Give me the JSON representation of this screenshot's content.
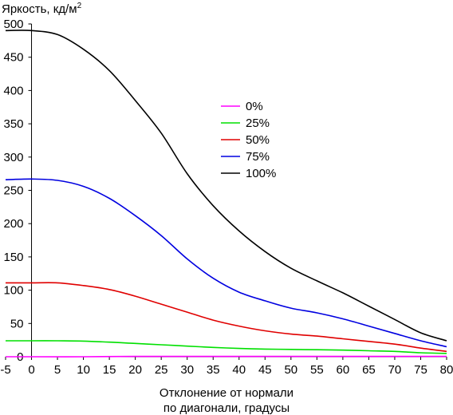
{
  "chart_data": {
    "type": "line",
    "ylabel": "Яркость, кд/м",
    "ylabel_sup": "2",
    "xlabel_line1": "Отклонение от нормали",
    "xlabel_line2": "по диагонали, градусы",
    "xlim": [
      -5,
      80
    ],
    "ylim": [
      0,
      500
    ],
    "xticks": [
      -5,
      0,
      5,
      10,
      15,
      20,
      25,
      30,
      35,
      40,
      45,
      50,
      55,
      60,
      65,
      70,
      75,
      80
    ],
    "yticks": [
      0,
      50,
      100,
      150,
      200,
      250,
      300,
      350,
      400,
      450,
      500
    ],
    "grid": false,
    "legend_position": "upper-center-right",
    "series": [
      {
        "name": "0%",
        "color": "#ff00ff",
        "x": [
          -5,
          0,
          10,
          20,
          30,
          40,
          50,
          60,
          70,
          80
        ],
        "y": [
          0,
          0,
          0,
          0.5,
          0.5,
          0.5,
          0.5,
          0.5,
          0.5,
          0.5
        ]
      },
      {
        "name": "25%",
        "color": "#00e000",
        "x": [
          -5,
          0,
          5,
          10,
          15,
          20,
          25,
          30,
          35,
          40,
          45,
          50,
          55,
          60,
          65,
          70,
          75,
          80
        ],
        "y": [
          24,
          24,
          24,
          23.5,
          22,
          20,
          18,
          16,
          14,
          12.5,
          11.5,
          11,
          10.5,
          10,
          9,
          8,
          6,
          5
        ]
      },
      {
        "name": "50%",
        "color": "#e00000",
        "x": [
          -5,
          0,
          5,
          10,
          15,
          20,
          25,
          30,
          35,
          40,
          45,
          50,
          55,
          60,
          65,
          70,
          75,
          80
        ],
        "y": [
          111,
          111,
          111,
          107,
          101,
          91,
          79,
          67,
          55,
          46,
          39,
          34,
          31,
          27,
          23,
          19,
          13,
          8
        ]
      },
      {
        "name": "75%",
        "color": "#0000e0",
        "x": [
          -5,
          0,
          5,
          10,
          15,
          20,
          25,
          30,
          35,
          40,
          45,
          50,
          55,
          60,
          65,
          70,
          75,
          80
        ],
        "y": [
          266,
          267,
          265,
          256,
          238,
          212,
          182,
          147,
          118,
          97,
          84,
          73,
          66,
          57,
          46,
          35,
          24,
          15
        ]
      },
      {
        "name": "100%",
        "color": "#000000",
        "x": [
          -5,
          0,
          5,
          10,
          15,
          20,
          25,
          30,
          35,
          40,
          45,
          50,
          55,
          60,
          65,
          70,
          75,
          80
        ],
        "y": [
          490,
          490,
          484,
          462,
          430,
          385,
          336,
          275,
          227,
          189,
          158,
          133,
          114,
          96,
          76,
          56,
          36,
          24
        ]
      }
    ]
  }
}
